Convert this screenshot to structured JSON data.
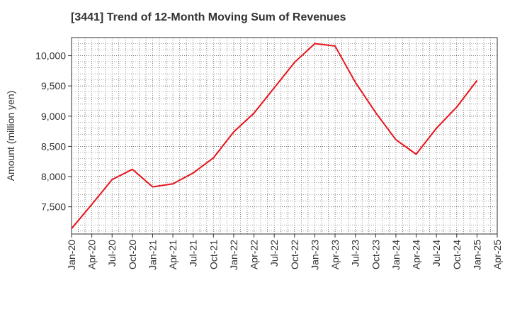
{
  "chart_data": {
    "type": "line",
    "title": "[3441]  Trend of 12-Month Moving Sum of Revenues",
    "xlabel": "",
    "ylabel": "Amount (million yen)",
    "ylim": [
      7050,
      10300
    ],
    "yticks": [
      7500,
      8000,
      8500,
      9000,
      9500,
      10000
    ],
    "ytick_labels": [
      "7,500",
      "8,000",
      "8,500",
      "9,000",
      "9,500",
      "10,000"
    ],
    "xtick_labels": [
      "Jan-20",
      "Apr-20",
      "Jul-20",
      "Oct-20",
      "Jan-21",
      "Apr-21",
      "Jul-21",
      "Oct-21",
      "Jan-22",
      "Apr-22",
      "Jul-22",
      "Oct-22",
      "Jan-23",
      "Apr-23",
      "Jul-23",
      "Oct-23",
      "Jan-24",
      "Apr-24",
      "Jul-24",
      "Oct-24",
      "Jan-25",
      "Apr-25"
    ],
    "grid": true,
    "line_color": "#e8141b",
    "x": [
      "Jan-20",
      "Apr-20",
      "Jul-20",
      "Oct-20",
      "Jan-21",
      "Apr-21",
      "Jul-21",
      "Oct-21",
      "Jan-22",
      "Apr-22",
      "Jul-22",
      "Oct-22",
      "Jan-23",
      "Apr-23",
      "Jul-23",
      "Oct-23",
      "Jan-24",
      "Apr-24",
      "Jul-24",
      "Oct-24",
      "Jan-25"
    ],
    "series": [
      {
        "values": [
          7140,
          7540,
          7950,
          8120,
          7830,
          7880,
          8060,
          8310,
          8740,
          9050,
          9470,
          9890,
          10200,
          10160,
          9560,
          9060,
          8610,
          8370,
          8800,
          9150,
          9590
        ]
      }
    ]
  }
}
